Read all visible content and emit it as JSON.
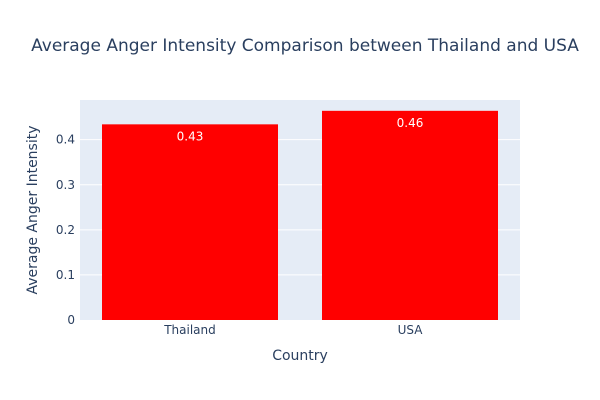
{
  "chart_data": {
    "type": "bar",
    "title": "Average Anger Intensity Comparison between Thailand and USA",
    "xlabel": "Country",
    "ylabel": "Average Anger Intensity",
    "categories": [
      "Thailand",
      "USA"
    ],
    "values": [
      0.434,
      0.464
    ],
    "value_labels": [
      "0.43",
      "0.46"
    ],
    "ylim": [
      0,
      0.488
    ],
    "yticks": [
      0,
      0.1,
      0.2,
      0.3,
      0.4
    ],
    "ytick_labels": [
      "0",
      "0.1",
      "0.2",
      "0.3",
      "0.4"
    ],
    "grid": true,
    "bar_color": "#ff0000",
    "plot_bg": "#e5ecf6",
    "text_color": "#2a3f5f"
  }
}
